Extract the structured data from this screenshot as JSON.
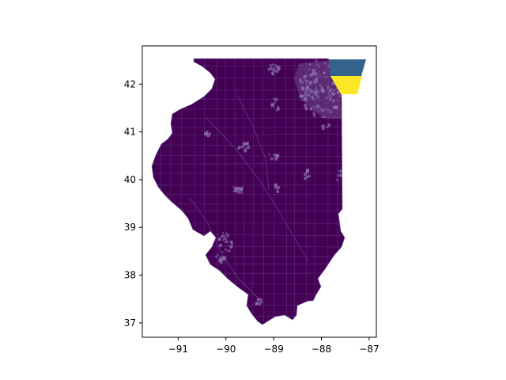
{
  "figure": {
    "background": "#ffffff"
  },
  "chart_data": {
    "type": "map",
    "title": "",
    "xlabel": "",
    "ylabel": "",
    "xlim": [
      -91.75,
      -86.85
    ],
    "ylim": [
      36.7,
      42.8
    ],
    "xticks": [
      -91,
      -90,
      -89,
      -88,
      -87
    ],
    "xtick_labels": [
      "−91",
      "−90",
      "−89",
      "−88",
      "−87"
    ],
    "yticks": [
      37,
      38,
      39,
      40,
      41,
      42
    ],
    "ytick_labels": [
      "37",
      "38",
      "39",
      "40",
      "41",
      "42"
    ],
    "grid": false,
    "legend": "none",
    "colormap": "viridis",
    "colors": {
      "base_fill": "#440154",
      "boundary_lines": "#7b5ea7",
      "high_density_urban": "#8a72b0",
      "lake_region_upper": "#33638d",
      "lake_region_lower": "#fde725"
    },
    "features": [
      {
        "name": "Illinois land area",
        "value_class": "low"
      },
      {
        "name": "Lake Michigan upper zone",
        "value_class": "mid"
      },
      {
        "name": "Lake Michigan lower zone",
        "value_class": "high"
      }
    ]
  }
}
